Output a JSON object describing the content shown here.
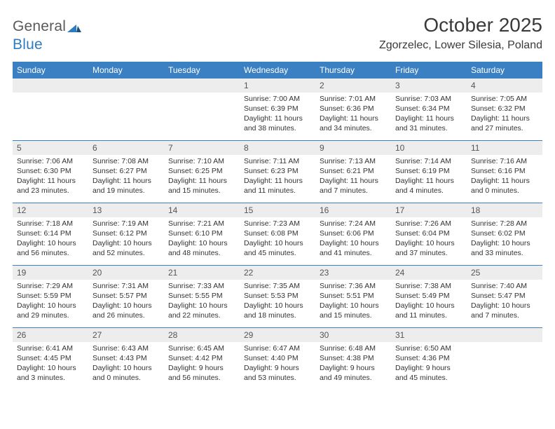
{
  "logo": {
    "word1": "General",
    "word2": "Blue"
  },
  "title": "October 2025",
  "location": "Zgorzelec, Lower Silesia, Poland",
  "colors": {
    "header_bg": "#3a80c3",
    "daynum_bg": "#ededed",
    "rule": "#3a80c3",
    "text": "#333333",
    "logo_gray": "#5a5a5a",
    "logo_blue": "#2f7bbf"
  },
  "weekdays": [
    "Sunday",
    "Monday",
    "Tuesday",
    "Wednesday",
    "Thursday",
    "Friday",
    "Saturday"
  ],
  "weeks": [
    [
      null,
      null,
      null,
      {
        "n": "1",
        "sr": "7:00 AM",
        "ss": "6:39 PM",
        "dl": "11 hours and 38 minutes."
      },
      {
        "n": "2",
        "sr": "7:01 AM",
        "ss": "6:36 PM",
        "dl": "11 hours and 34 minutes."
      },
      {
        "n": "3",
        "sr": "7:03 AM",
        "ss": "6:34 PM",
        "dl": "11 hours and 31 minutes."
      },
      {
        "n": "4",
        "sr": "7:05 AM",
        "ss": "6:32 PM",
        "dl": "11 hours and 27 minutes."
      }
    ],
    [
      {
        "n": "5",
        "sr": "7:06 AM",
        "ss": "6:30 PM",
        "dl": "11 hours and 23 minutes."
      },
      {
        "n": "6",
        "sr": "7:08 AM",
        "ss": "6:27 PM",
        "dl": "11 hours and 19 minutes."
      },
      {
        "n": "7",
        "sr": "7:10 AM",
        "ss": "6:25 PM",
        "dl": "11 hours and 15 minutes."
      },
      {
        "n": "8",
        "sr": "7:11 AM",
        "ss": "6:23 PM",
        "dl": "11 hours and 11 minutes."
      },
      {
        "n": "9",
        "sr": "7:13 AM",
        "ss": "6:21 PM",
        "dl": "11 hours and 7 minutes."
      },
      {
        "n": "10",
        "sr": "7:14 AM",
        "ss": "6:19 PM",
        "dl": "11 hours and 4 minutes."
      },
      {
        "n": "11",
        "sr": "7:16 AM",
        "ss": "6:16 PM",
        "dl": "11 hours and 0 minutes."
      }
    ],
    [
      {
        "n": "12",
        "sr": "7:18 AM",
        "ss": "6:14 PM",
        "dl": "10 hours and 56 minutes."
      },
      {
        "n": "13",
        "sr": "7:19 AM",
        "ss": "6:12 PM",
        "dl": "10 hours and 52 minutes."
      },
      {
        "n": "14",
        "sr": "7:21 AM",
        "ss": "6:10 PM",
        "dl": "10 hours and 48 minutes."
      },
      {
        "n": "15",
        "sr": "7:23 AM",
        "ss": "6:08 PM",
        "dl": "10 hours and 45 minutes."
      },
      {
        "n": "16",
        "sr": "7:24 AM",
        "ss": "6:06 PM",
        "dl": "10 hours and 41 minutes."
      },
      {
        "n": "17",
        "sr": "7:26 AM",
        "ss": "6:04 PM",
        "dl": "10 hours and 37 minutes."
      },
      {
        "n": "18",
        "sr": "7:28 AM",
        "ss": "6:02 PM",
        "dl": "10 hours and 33 minutes."
      }
    ],
    [
      {
        "n": "19",
        "sr": "7:29 AM",
        "ss": "5:59 PM",
        "dl": "10 hours and 29 minutes."
      },
      {
        "n": "20",
        "sr": "7:31 AM",
        "ss": "5:57 PM",
        "dl": "10 hours and 26 minutes."
      },
      {
        "n": "21",
        "sr": "7:33 AM",
        "ss": "5:55 PM",
        "dl": "10 hours and 22 minutes."
      },
      {
        "n": "22",
        "sr": "7:35 AM",
        "ss": "5:53 PM",
        "dl": "10 hours and 18 minutes."
      },
      {
        "n": "23",
        "sr": "7:36 AM",
        "ss": "5:51 PM",
        "dl": "10 hours and 15 minutes."
      },
      {
        "n": "24",
        "sr": "7:38 AM",
        "ss": "5:49 PM",
        "dl": "10 hours and 11 minutes."
      },
      {
        "n": "25",
        "sr": "7:40 AM",
        "ss": "5:47 PM",
        "dl": "10 hours and 7 minutes."
      }
    ],
    [
      {
        "n": "26",
        "sr": "6:41 AM",
        "ss": "4:45 PM",
        "dl": "10 hours and 3 minutes."
      },
      {
        "n": "27",
        "sr": "6:43 AM",
        "ss": "4:43 PM",
        "dl": "10 hours and 0 minutes."
      },
      {
        "n": "28",
        "sr": "6:45 AM",
        "ss": "4:42 PM",
        "dl": "9 hours and 56 minutes."
      },
      {
        "n": "29",
        "sr": "6:47 AM",
        "ss": "4:40 PM",
        "dl": "9 hours and 53 minutes."
      },
      {
        "n": "30",
        "sr": "6:48 AM",
        "ss": "4:38 PM",
        "dl": "9 hours and 49 minutes."
      },
      {
        "n": "31",
        "sr": "6:50 AM",
        "ss": "4:36 PM",
        "dl": "9 hours and 45 minutes."
      },
      null
    ]
  ],
  "labels": {
    "sunrise": "Sunrise: ",
    "sunset": "Sunset: ",
    "daylight": "Daylight: "
  }
}
